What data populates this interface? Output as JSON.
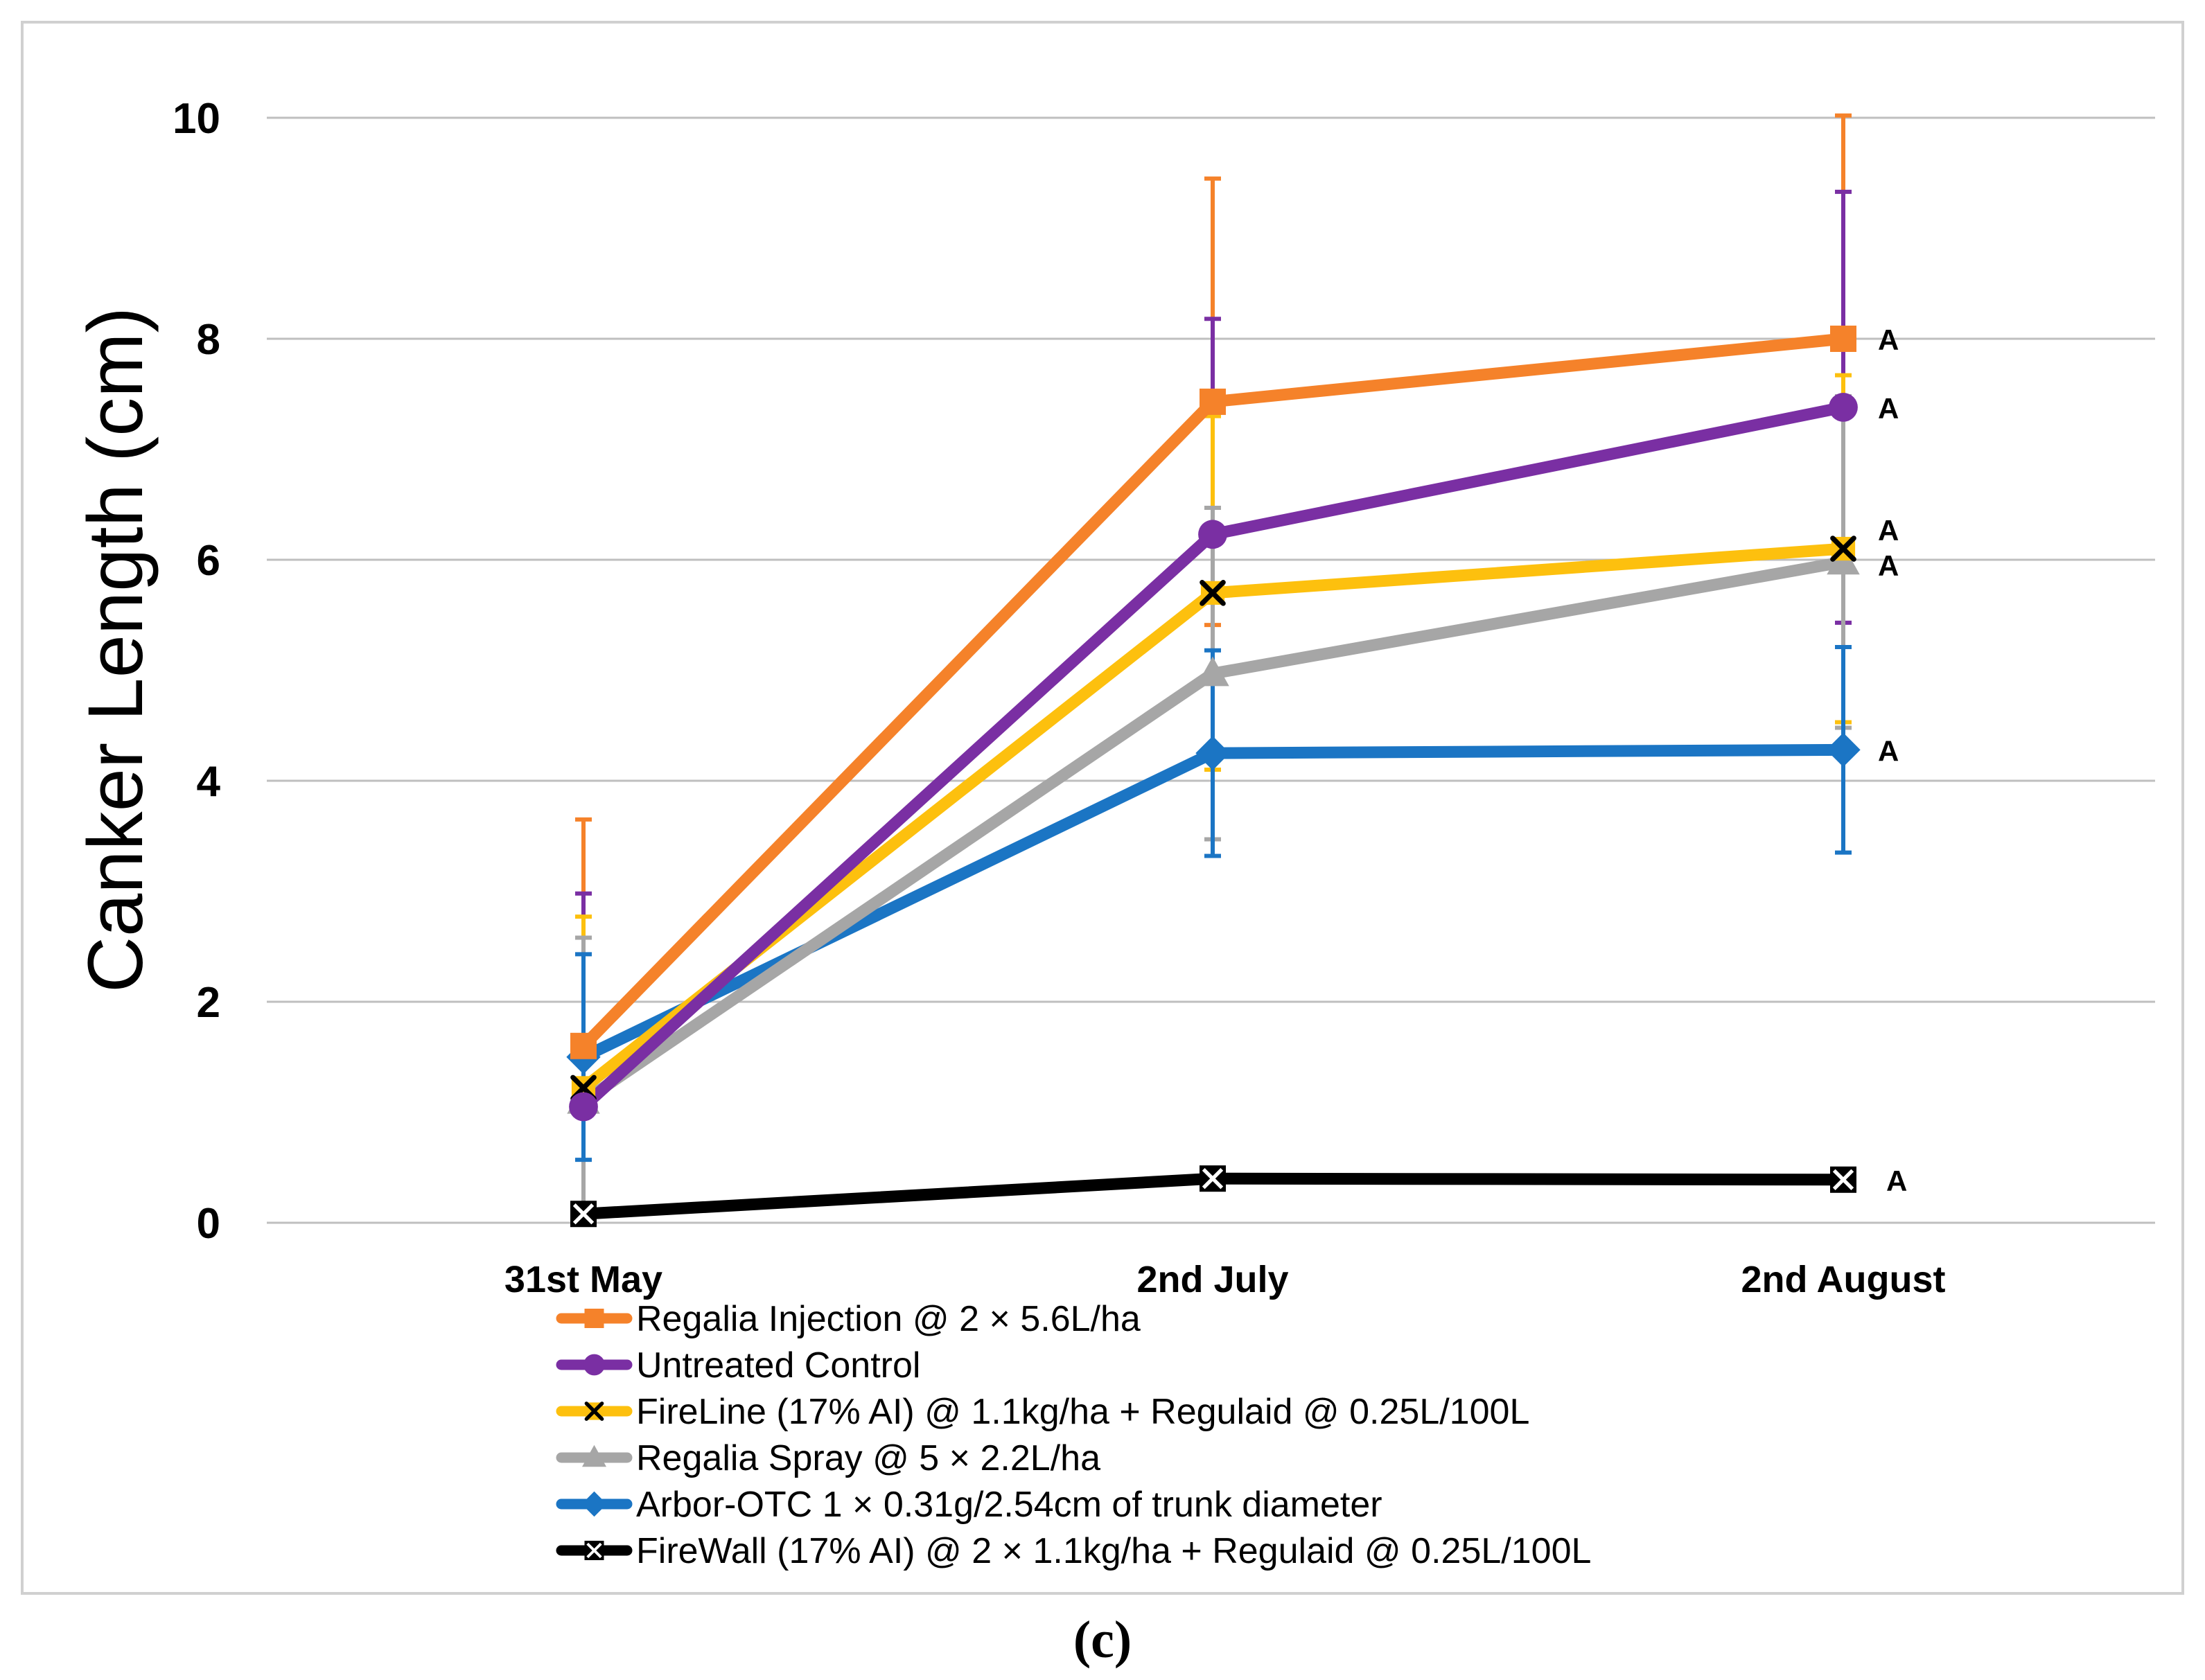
{
  "caption": "(c)",
  "chart_data": {
    "type": "line",
    "title": "",
    "xlabel": "",
    "ylabel": "Canker Length (cm)",
    "ylim": [
      0,
      10
    ],
    "yticks": [
      0,
      2,
      4,
      6,
      8,
      10
    ],
    "grid": true,
    "legend_position": "bottom",
    "categories": [
      "31st May",
      "2nd July",
      "2nd August"
    ],
    "series": [
      {
        "name": "Regalia Injection @ 2 × 5.6L/ha",
        "color": "#f5822a",
        "marker": "square",
        "values": [
          1.6,
          7.43,
          8.0
        ],
        "error": [
          2.05,
          2.02,
          2.02
        ],
        "labels": [
          "",
          "",
          "A"
        ]
      },
      {
        "name": "Untreated Control",
        "color": "#7a2fa3",
        "marker": "circle",
        "values": [
          1.05,
          6.23,
          7.38
        ],
        "error": [
          1.93,
          1.95,
          1.95
        ],
        "labels": [
          "",
          "",
          "A"
        ]
      },
      {
        "name": "FireLine (17% AI) @ 1.1kg/ha + Regulaid @ 0.25L/100L",
        "color": "#fdc00e",
        "marker": "x",
        "values": [
          1.22,
          5.7,
          6.1
        ],
        "error": [
          1.55,
          1.6,
          1.57
        ],
        "labels": [
          "",
          "",
          "A"
        ]
      },
      {
        "name": "Regalia Spray @ 5 × 2.2L/ha",
        "color": "#a6a6a6",
        "marker": "triangle",
        "values": [
          1.1,
          4.97,
          5.98
        ],
        "error": [
          1.48,
          1.5,
          1.5
        ],
        "labels": [
          "",
          "",
          "A"
        ]
      },
      {
        "name": "Arbor-OTC 1 × 0.31g/2.54cm of trunk diameter",
        "color": "#1b75c4",
        "marker": "diamond",
        "values": [
          1.5,
          4.25,
          4.28
        ],
        "error": [
          0.93,
          0.93,
          0.93
        ],
        "labels": [
          "",
          "",
          "A"
        ]
      },
      {
        "name": "FireWall (17% AI) @ 2 × 1.1kg/ha + Regulaid @ 0.25L/100L",
        "color": "#000000",
        "marker": "xbox",
        "values": [
          0.08,
          0.4,
          0.39
        ],
        "error": [
          0,
          0,
          0
        ],
        "labels": [
          "",
          "",
          "A"
        ]
      }
    ]
  }
}
